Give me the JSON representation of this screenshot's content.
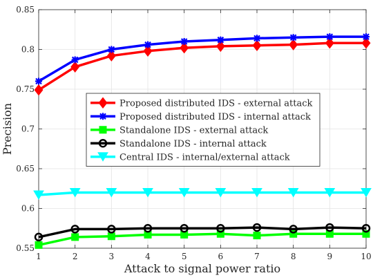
{
  "chart_data": {
    "type": "line",
    "title": "",
    "xlabel": "Attack to signal power ratio",
    "ylabel": "Precision",
    "xlim": [
      1,
      10
    ],
    "ylim": [
      0.55,
      0.85
    ],
    "x": [
      1,
      2,
      3,
      4,
      5,
      6,
      7,
      8,
      9,
      10
    ],
    "xticks": [
      "1",
      "2",
      "3",
      "4",
      "5",
      "6",
      "7",
      "8",
      "9",
      "10"
    ],
    "yticks": [
      "0.55",
      "0.6",
      "0.65",
      "0.7",
      "0.75",
      "0.8",
      "0.85"
    ],
    "grid": true,
    "legend_position": "center",
    "series": [
      {
        "name": "Proposed distributed IDS - external attack",
        "color": "#ff0000",
        "marker": "diamond",
        "values": [
          0.749,
          0.778,
          0.792,
          0.798,
          0.802,
          0.804,
          0.805,
          0.806,
          0.808,
          0.808
        ]
      },
      {
        "name": "Proposed distributed IDS - internal attack",
        "color": "#0000ff",
        "marker": "star",
        "values": [
          0.76,
          0.787,
          0.8,
          0.806,
          0.81,
          0.812,
          0.814,
          0.815,
          0.816,
          0.816
        ]
      },
      {
        "name": "Standalone IDS - external attack",
        "color": "#00ff00",
        "marker": "square",
        "values": [
          0.554,
          0.564,
          0.565,
          0.567,
          0.567,
          0.568,
          0.566,
          0.568,
          0.568,
          0.568
        ]
      },
      {
        "name": "Standalone IDS - internal attack",
        "color": "#000000",
        "marker": "circle",
        "values": [
          0.564,
          0.574,
          0.574,
          0.575,
          0.575,
          0.575,
          0.576,
          0.574,
          0.576,
          0.575
        ]
      },
      {
        "name": "Central IDS - internal/external attack",
        "color": "#00ffff",
        "marker": "triangle-down",
        "values": [
          0.617,
          0.62,
          0.62,
          0.62,
          0.62,
          0.62,
          0.62,
          0.62,
          0.62,
          0.62
        ]
      }
    ]
  }
}
